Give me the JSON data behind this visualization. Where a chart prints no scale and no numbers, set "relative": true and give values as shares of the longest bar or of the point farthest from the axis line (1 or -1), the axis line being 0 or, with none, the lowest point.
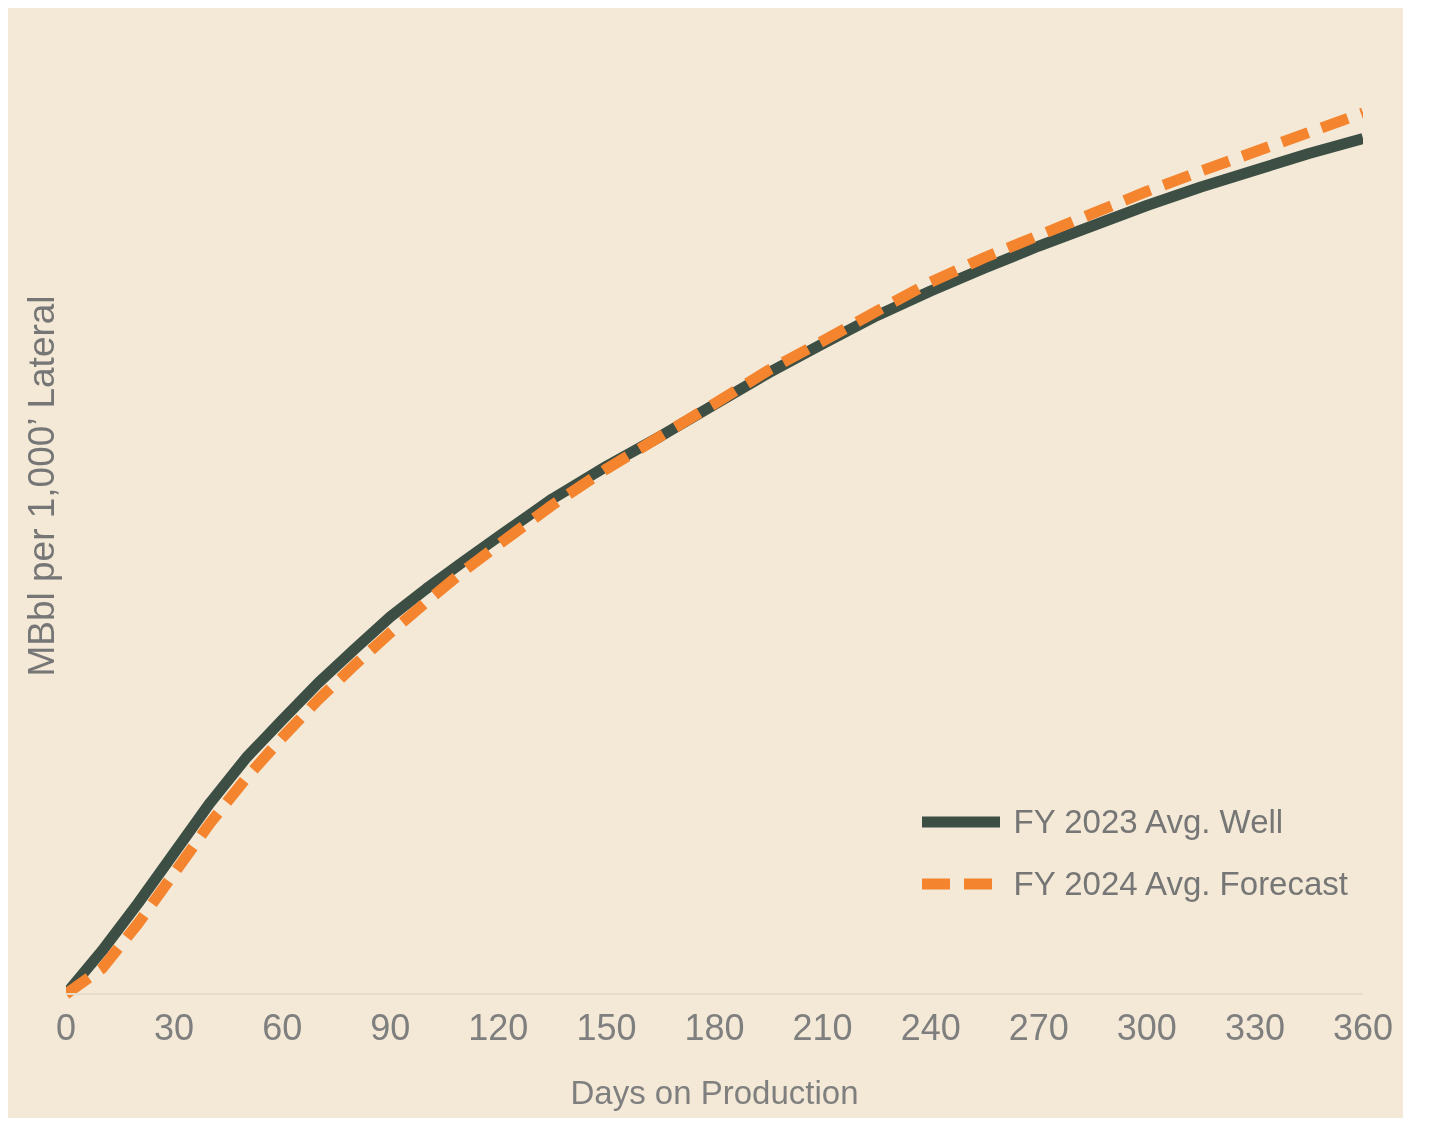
{
  "chart_data": {
    "type": "line",
    "xlabel": "Days on Production",
    "ylabel": "MBbl per 1,000’ Lateral",
    "relative": true,
    "x": [
      0,
      10,
      20,
      30,
      40,
      50,
      60,
      70,
      80,
      90,
      100,
      110,
      120,
      135,
      150,
      165,
      180,
      195,
      210,
      225,
      240,
      255,
      270,
      285,
      300,
      315,
      330,
      345,
      360
    ],
    "xlim": [
      0,
      360
    ],
    "xticks": [
      0,
      30,
      60,
      90,
      120,
      150,
      180,
      210,
      240,
      270,
      300,
      330,
      360
    ],
    "series": [
      {
        "name": "FY 2023 Avg. Well",
        "color": "#3d4f45",
        "line_style": "solid",
        "values": [
          0,
          0.049,
          0.103,
          0.16,
          0.217,
          0.268,
          0.311,
          0.353,
          0.391,
          0.428,
          0.46,
          0.49,
          0.519,
          0.562,
          0.599,
          0.633,
          0.669,
          0.705,
          0.738,
          0.77,
          0.798,
          0.824,
          0.849,
          0.872,
          0.895,
          0.916,
          0.935,
          0.954,
          0.971
        ]
      },
      {
        "name": "FY 2024 Avg. Forecast",
        "color": "#f5842f",
        "line_style": "dashed",
        "values": [
          0,
          0.029,
          0.08,
          0.137,
          0.194,
          0.245,
          0.291,
          0.334,
          0.373,
          0.41,
          0.445,
          0.479,
          0.51,
          0.555,
          0.596,
          0.633,
          0.67,
          0.708,
          0.741,
          0.775,
          0.808,
          0.836,
          0.861,
          0.886,
          0.911,
          0.934,
          0.956,
          0.978,
          1
        ]
      }
    ],
    "legend": "bottom right",
    "grid": false,
    "marker": "none"
  }
}
